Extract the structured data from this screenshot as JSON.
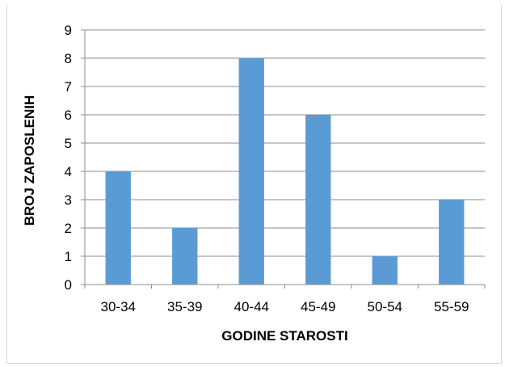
{
  "chart_data": {
    "type": "bar",
    "categories": [
      "30-34",
      "35-39",
      "40-44",
      "45-49",
      "50-54",
      "55-59"
    ],
    "values": [
      4,
      2,
      8,
      6,
      1,
      3
    ],
    "title": "",
    "xlabel": "GODINE STAROSTI",
    "ylabel": "BROJ ZAPOSLENIH",
    "ylim": [
      0,
      9
    ],
    "yticks": [
      0,
      1,
      2,
      3,
      4,
      5,
      6,
      7,
      8,
      9
    ],
    "grid": true,
    "legend": "none",
    "bar_color": "#5b9bd5"
  }
}
